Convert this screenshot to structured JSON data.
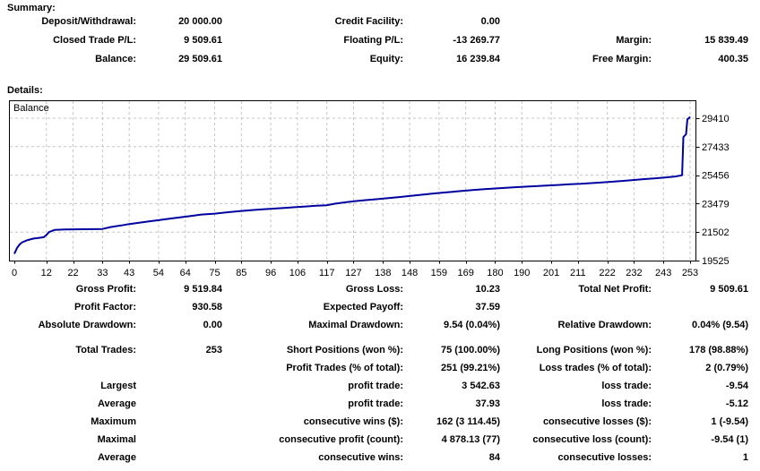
{
  "summary": {
    "heading": "Summary:",
    "rows": [
      [
        {
          "label": "Deposit/Withdrawal:",
          "value": "20 000.00"
        },
        {
          "label": "Credit Facility:",
          "value": "0.00"
        },
        {
          "label": "",
          "value": ""
        }
      ],
      [
        {
          "label": "Closed Trade P/L:",
          "value": "9 509.61"
        },
        {
          "label": "Floating P/L:",
          "value": "-13 269.77"
        },
        {
          "label": "Margin:",
          "value": "15 839.49"
        }
      ],
      [
        {
          "label": "Balance:",
          "value": "29 509.61"
        },
        {
          "label": "Equity:",
          "value": "16 239.84"
        },
        {
          "label": "Free Margin:",
          "value": "400.35"
        }
      ]
    ]
  },
  "details": {
    "heading": "Details:",
    "group1": [
      [
        {
          "label": "Gross Profit:",
          "value": "9 519.84"
        },
        {
          "label": "Gross Loss:",
          "value": "10.23"
        },
        {
          "label": "Total Net Profit:",
          "value": "9 509.61"
        }
      ],
      [
        {
          "label": "Profit Factor:",
          "value": "930.58"
        },
        {
          "label": "Expected Payoff:",
          "value": "37.59"
        },
        {
          "label": "",
          "value": ""
        }
      ],
      [
        {
          "label": "Absolute Drawdown:",
          "value": "0.00"
        },
        {
          "label": "Maximal Drawdown:",
          "value": "9.54 (0.04%)"
        },
        {
          "label": "Relative Drawdown:",
          "value": "0.04% (9.54)"
        }
      ]
    ],
    "group2": [
      [
        {
          "label": "Total Trades:",
          "value": "253"
        },
        {
          "label": "Short Positions (won %):",
          "value": "75 (100.00%)"
        },
        {
          "label": "Long Positions (won %):",
          "value": "178 (98.88%)"
        }
      ],
      [
        {
          "label": "",
          "value": ""
        },
        {
          "label": "Profit Trades (% of total):",
          "value": "251 (99.21%)"
        },
        {
          "label": "Loss trades (% of total):",
          "value": "2 (0.79%)"
        }
      ],
      [
        {
          "label": "Largest",
          "value": ""
        },
        {
          "label": "profit trade:",
          "value": "3 542.63"
        },
        {
          "label": "loss trade:",
          "value": "-9.54"
        }
      ],
      [
        {
          "label": "Average",
          "value": ""
        },
        {
          "label": "profit trade:",
          "value": "37.93"
        },
        {
          "label": "loss trade:",
          "value": "-5.12"
        }
      ],
      [
        {
          "label": "Maximum",
          "value": ""
        },
        {
          "label": "consecutive wins ($):",
          "value": "162 (3 114.45)"
        },
        {
          "label": "consecutive losses ($):",
          "value": "1 (-9.54)"
        }
      ],
      [
        {
          "label": "Maximal",
          "value": ""
        },
        {
          "label": "consecutive profit (count):",
          "value": "4 878.13 (77)"
        },
        {
          "label": "consecutive loss (count):",
          "value": "-9.54 (1)"
        }
      ],
      [
        {
          "label": "Average",
          "value": ""
        },
        {
          "label": "consecutive wins:",
          "value": "84"
        },
        {
          "label": "consecutive losses:",
          "value": "1"
        }
      ]
    ]
  },
  "chart_data": {
    "type": "line",
    "series_name": "Balance",
    "line_color": "#0000A0",
    "grid_color": "#c4c4c4",
    "grid": true,
    "legend_position": "top-left",
    "x_ticks": [
      0,
      12,
      22,
      33,
      43,
      54,
      64,
      75,
      85,
      96,
      106,
      117,
      127,
      138,
      148,
      159,
      169,
      180,
      190,
      201,
      211,
      222,
      232,
      243,
      253
    ],
    "y_ticks": [
      19525,
      21502,
      23479,
      25456,
      27433,
      29410
    ],
    "x_range": [
      0,
      253
    ],
    "y_range": [
      19525,
      29557
    ],
    "points": [
      [
        0,
        20000
      ],
      [
        1,
        20400
      ],
      [
        2,
        20650
      ],
      [
        3,
        20800
      ],
      [
        5,
        20950
      ],
      [
        7,
        21050
      ],
      [
        9,
        21100
      ],
      [
        11,
        21150
      ],
      [
        12,
        21300
      ],
      [
        13,
        21500
      ],
      [
        15,
        21650
      ],
      [
        19,
        21680
      ],
      [
        26,
        21700
      ],
      [
        33,
        21720
      ],
      [
        36,
        21850
      ],
      [
        40,
        21960
      ],
      [
        43,
        22060
      ],
      [
        47,
        22160
      ],
      [
        51,
        22260
      ],
      [
        54,
        22330
      ],
      [
        58,
        22430
      ],
      [
        62,
        22520
      ],
      [
        66,
        22620
      ],
      [
        70,
        22720
      ],
      [
        75,
        22780
      ],
      [
        80,
        22880
      ],
      [
        85,
        22970
      ],
      [
        89,
        23030
      ],
      [
        93,
        23080
      ],
      [
        97,
        23130
      ],
      [
        101,
        23180
      ],
      [
        105,
        23230
      ],
      [
        109,
        23280
      ],
      [
        113,
        23330
      ],
      [
        117,
        23370
      ],
      [
        120,
        23470
      ],
      [
        124,
        23570
      ],
      [
        128,
        23660
      ],
      [
        132,
        23730
      ],
      [
        136,
        23790
      ],
      [
        140,
        23860
      ],
      [
        144,
        23930
      ],
      [
        148,
        24010
      ],
      [
        152,
        24090
      ],
      [
        156,
        24160
      ],
      [
        160,
        24230
      ],
      [
        164,
        24300
      ],
      [
        168,
        24370
      ],
      [
        172,
        24430
      ],
      [
        176,
        24480
      ],
      [
        180,
        24530
      ],
      [
        184,
        24580
      ],
      [
        188,
        24620
      ],
      [
        192,
        24660
      ],
      [
        196,
        24700
      ],
      [
        200,
        24740
      ],
      [
        204,
        24780
      ],
      [
        208,
        24820
      ],
      [
        212,
        24860
      ],
      [
        216,
        24900
      ],
      [
        220,
        24950
      ],
      [
        224,
        25000
      ],
      [
        228,
        25060
      ],
      [
        232,
        25120
      ],
      [
        236,
        25180
      ],
      [
        240,
        25240
      ],
      [
        244,
        25300
      ],
      [
        247,
        25350
      ],
      [
        249,
        25410
      ],
      [
        250,
        25456
      ],
      [
        250.5,
        28100
      ],
      [
        251,
        28200
      ],
      [
        251.5,
        28300
      ],
      [
        252,
        29350
      ],
      [
        252.5,
        29400
      ],
      [
        253,
        29510
      ]
    ]
  }
}
